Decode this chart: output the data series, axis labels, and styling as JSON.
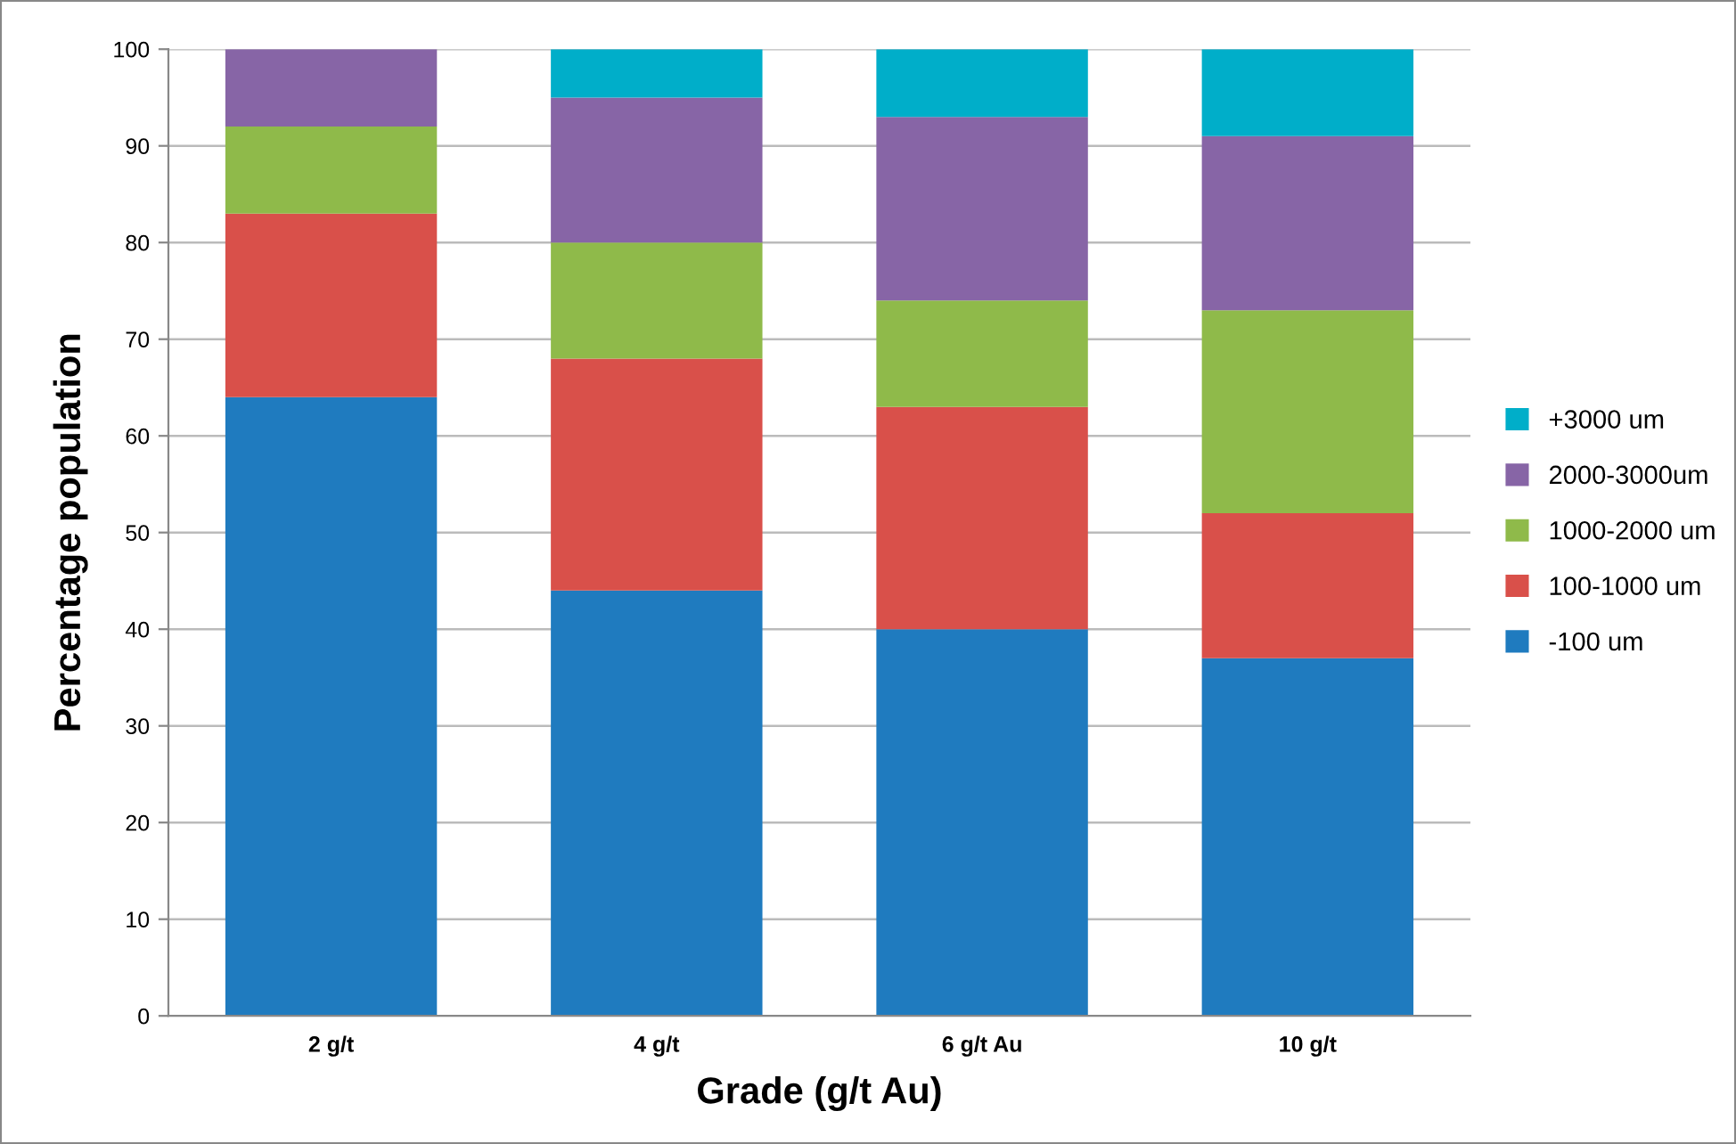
{
  "chart_data": {
    "type": "bar",
    "stacked": true,
    "xlabel": "Grade (g/t Au)",
    "ylabel": "Percentage population",
    "categories": [
      "2 g/t",
      "4 g/t",
      "6 g/t Au",
      "10 g/t"
    ],
    "series": [
      {
        "name": "-100 um",
        "color": "#1f7bbf",
        "values": [
          64,
          44,
          40,
          37
        ]
      },
      {
        "name": "100-1000 um",
        "color": "#d9504a",
        "values": [
          19,
          24,
          23,
          15
        ]
      },
      {
        "name": "1000-2000 um",
        "color": "#8fba4a",
        "values": [
          9,
          12,
          11,
          21
        ]
      },
      {
        "name": "2000-3000um",
        "color": "#8765a6",
        "values": [
          8,
          15,
          19,
          18
        ]
      },
      {
        "name": "+3000 um",
        "color": "#00aec9",
        "values": [
          0,
          5,
          7,
          9
        ]
      }
    ],
    "ylim": [
      0,
      100
    ],
    "yticks": [
      0,
      10,
      20,
      30,
      40,
      50,
      60,
      70,
      80,
      90,
      100
    ],
    "grid": "y",
    "legend": "right"
  }
}
